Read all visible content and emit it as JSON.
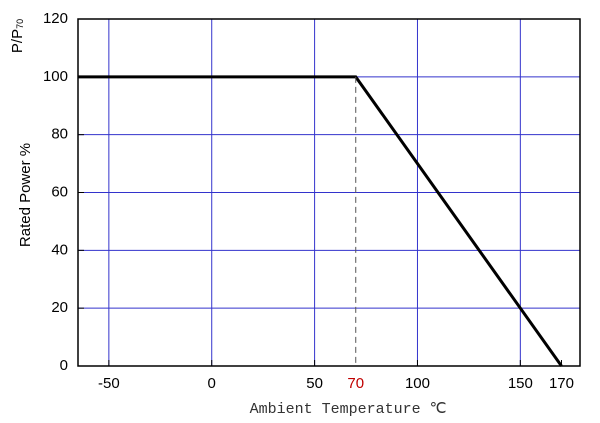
{
  "chart_data": {
    "type": "line",
    "y_label": "Rated Power %",
    "y_unit": "P/P",
    "y_unit_sub": "70",
    "x_label": "Ambient Temperature ℃",
    "x": [
      -65,
      70,
      170
    ],
    "series": [
      {
        "name": "Rated Power",
        "color": "#000000",
        "values": [
          100,
          100,
          0
        ]
      }
    ],
    "xlim": [
      -65,
      179
    ],
    "ylim": [
      0,
      120
    ],
    "xticks": [
      -50,
      0,
      50,
      100,
      150
    ],
    "extra_xticks": [
      170
    ],
    "yticks": [
      0,
      20,
      40,
      60,
      80,
      100,
      120
    ],
    "marker_x": 70,
    "marker_color": "#c00000",
    "grid": true,
    "grid_color": "#3333cc"
  }
}
